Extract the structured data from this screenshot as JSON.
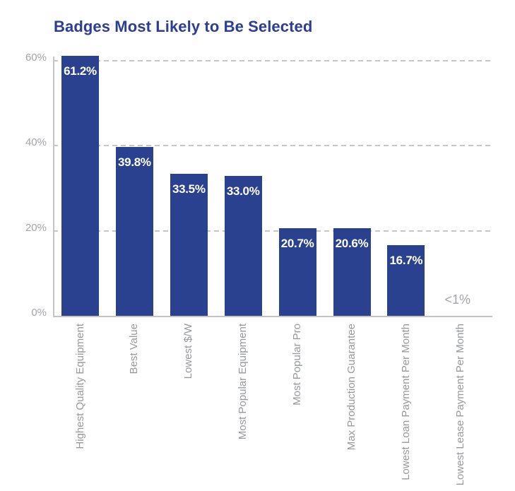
{
  "chart_data": {
    "type": "bar",
    "title": "Badges Most Likely to Be Selected",
    "categories": [
      "Highest Quality Equipment",
      "Best Value",
      "Lowest $/W",
      "Most Popular Equipment",
      "Most Popular Pro",
      "Max Production Guarantee",
      "Lowest Loan Payment Per Month",
      "Lowest Lease Payment Per Month"
    ],
    "values": [
      61.2,
      39.8,
      33.5,
      33.0,
      20.7,
      20.6,
      16.7,
      0
    ],
    "bar_labels": [
      "61.2%",
      "39.8%",
      "33.5%",
      "33.0%",
      "20.7%",
      "20.6%",
      "16.7%",
      "<1%"
    ],
    "xlabel": "",
    "ylabel": "",
    "ylim": [
      0,
      60
    ],
    "y_ticks": [
      {
        "value": 0,
        "label": "0%"
      },
      {
        "value": 20,
        "label": "20%"
      },
      {
        "value": 40,
        "label": "40%"
      },
      {
        "value": 60,
        "label": "60%"
      }
    ],
    "grid": "horizontal-dashed",
    "legend": "none",
    "colors": {
      "bar": "#2a418f",
      "title": "#2b3e96",
      "axis_text": "#a2a4a7",
      "category_text": "#96989b",
      "gridline": "#c6c6c6",
      "axis_line": "#c4c4c4",
      "bar_label": "#ffffff"
    }
  }
}
